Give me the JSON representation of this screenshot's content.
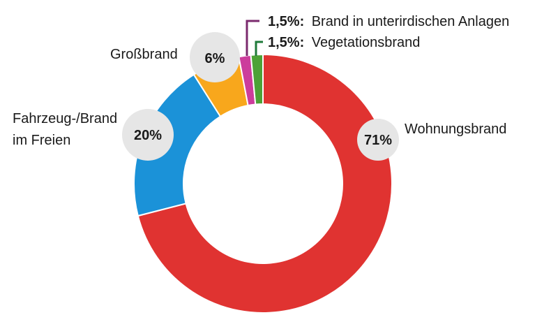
{
  "chart_data": {
    "type": "pie",
    "donut": true,
    "slices": [
      {
        "label": "Wohnungsbrand",
        "value": 71,
        "pct_text": "71%",
        "color": "#e03331"
      },
      {
        "label": "Fahrzeug-/Brand im Freien",
        "label_lines": [
          "Fahrzeug-/Brand",
          "im Freien"
        ],
        "value": 20,
        "pct_text": "20%",
        "color": "#1b92d8"
      },
      {
        "label": "Großbrand",
        "value": 6,
        "pct_text": "6%",
        "color": "#f8a71c"
      },
      {
        "label": "Brand in unterirdischen Anlagen",
        "value": 1.5,
        "pct_text": "1,5%:",
        "color": "#cc3d9c",
        "leader_color": "#7b2a6e"
      },
      {
        "label": "Vegetationsbrand",
        "value": 1.5,
        "pct_text": "1,5%:",
        "color": "#4ca236",
        "leader_color": "#1f7a3a"
      }
    ],
    "order_clockwise_from_top": [
      "Wohnungsbrand",
      "Fahrzeug-/Brand im Freien",
      "Großbrand",
      "Brand in unterirdischen Anlagen",
      "Vegetationsbrand"
    ]
  }
}
